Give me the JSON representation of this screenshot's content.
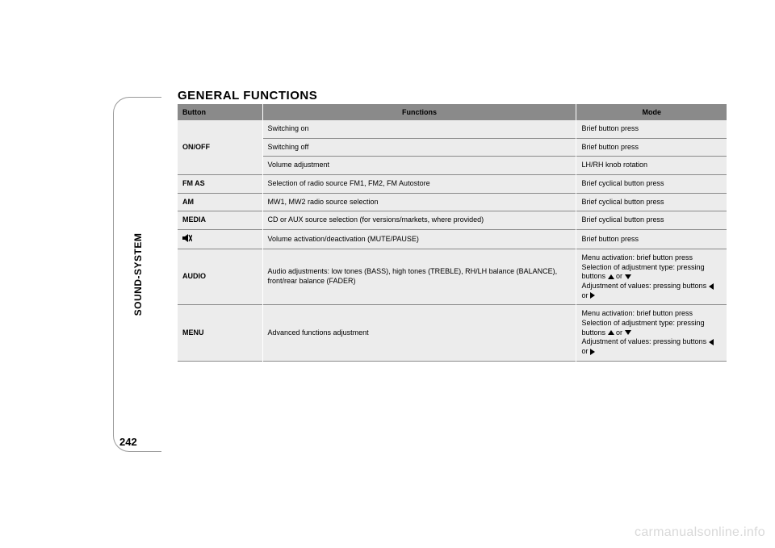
{
  "page": {
    "side_label": "SOUND-SYSTEM",
    "page_number": "242",
    "watermark": "carmanualsonline.info"
  },
  "section": {
    "title": "GENERAL FUNCTIONS"
  },
  "table": {
    "headers": {
      "c1": "Button",
      "c2": "Functions",
      "c3": "Mode"
    },
    "rows": [
      {
        "button": "",
        "func": "Switching on",
        "mode": "Brief button press",
        "group": "onoff",
        "first": true
      },
      {
        "button": "ON/OFF",
        "func": "Switching off",
        "mode": "Brief button press",
        "group": "onoff"
      },
      {
        "button": "",
        "func": "Volume adjustment",
        "mode": "LH/RH knob rotation",
        "group": "onoff"
      },
      {
        "button": "FM AS",
        "func": "Selection of radio source FM1, FM2, FM Autostore",
        "mode": "Brief cyclical button press"
      },
      {
        "button": "AM",
        "func": "MW1, MW2 radio source selection",
        "mode": "Brief cyclical button press"
      },
      {
        "button": "MEDIA",
        "func": "CD or AUX source selection (for versions/markets, where provided)",
        "mode": "Brief cyclical button press"
      },
      {
        "button": "__MUTE__",
        "func": "Volume activation/deactivation (MUTE/PAUSE)",
        "mode": "Brief button press"
      },
      {
        "button": "AUDIO",
        "func": "Audio adjustments: low tones (BASS), high tones (TREBLE), RH/LH balance (BALANCE), front/rear balance (FADER)",
        "mode_lines": [
          {
            "pre": "Menu activation: brief button press"
          },
          {
            "pre": "Selection of adjustment type: pressing buttons ",
            "i1": "up",
            "mid": " or ",
            "i2": "down"
          },
          {
            "pre": "Adjustment of values: pressing buttons ",
            "i1": "left",
            "mid": " or ",
            "i2": "right"
          }
        ]
      },
      {
        "button": "MENU",
        "func": "Advanced functions adjustment",
        "mode_lines": [
          {
            "pre": "Menu activation: brief button press"
          },
          {
            "pre": "Selection of adjustment type: pressing buttons ",
            "i1": "up",
            "mid": " or ",
            "i2": "down"
          },
          {
            "pre": "Adjustment of values: pressing buttons ",
            "i1": "left",
            "mid": " or ",
            "i2": "right"
          }
        ]
      }
    ]
  },
  "colors": {
    "header_bg": "#8a8a8a",
    "row_bg": "#ececec",
    "divider": "#8a8a8a",
    "text": "#000000",
    "watermark": "#d9d9d9"
  },
  "fonts": {
    "title_size_pt": 15,
    "table_size_pt": 9,
    "sidelabel_size_pt": 12,
    "pagenum_size_pt": 13
  }
}
